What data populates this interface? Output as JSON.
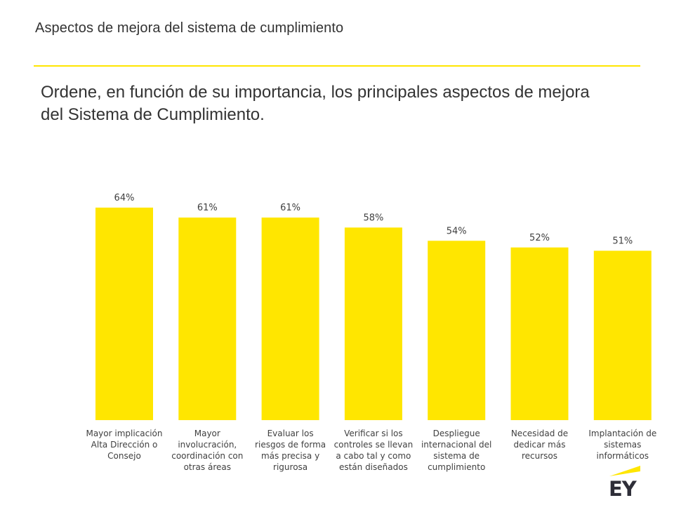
{
  "header": {
    "title": "Aspectos de mejora del sistema de cumplimiento"
  },
  "question": "Ordene, en función de su importancia, los principales aspectos de mejora del Sistema de Cumplimiento.",
  "colors": {
    "accent": "#ffe600",
    "text": "#333333",
    "logo_text": "#2e2e38"
  },
  "logo": {
    "text": "EY"
  },
  "chart_data": {
    "type": "bar",
    "title": "",
    "xlabel": "",
    "ylabel": "",
    "ylim": [
      0,
      64
    ],
    "grid": false,
    "legend": "none",
    "categories": [
      "Mayor implicación\nAlta Dirección o\nConsejo",
      "Mayor\ninvolucración,\ncoordinación con\notras áreas",
      "Evaluar los\nriesgos de forma\nmás precisa y\nrigurosa",
      "Verificar si los\ncontroles se llevan\na cabo tal y como\nestán diseñados",
      "Despliegue\ninternacional del\nsistema de\ncumplimiento",
      "Necesidad de\ndedicar más\nrecursos",
      "Implantación de\nsistemas\ninformáticos"
    ],
    "values": [
      64,
      61,
      61,
      58,
      54,
      52,
      51
    ],
    "value_labels": [
      "64%",
      "61%",
      "61%",
      "58%",
      "54%",
      "52%",
      "51%"
    ]
  }
}
